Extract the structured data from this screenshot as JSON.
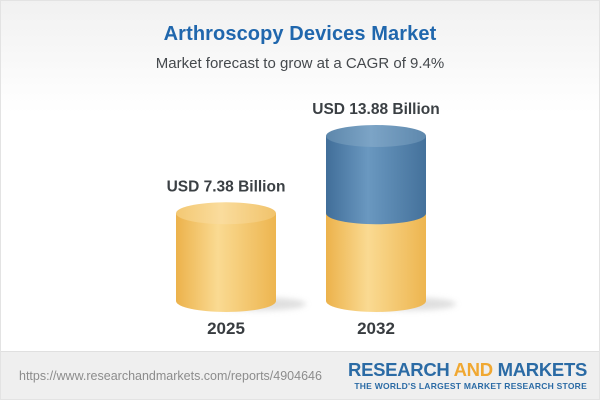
{
  "header": {
    "title": "Arthroscopy Devices Market",
    "subtitle": "Market forecast to grow at a CAGR of 9.4%"
  },
  "chart_data": {
    "type": "bar",
    "subtype": "3d-cylinder-stacked",
    "title": "Arthroscopy Devices Market",
    "subtitle": "Market forecast to grow at a CAGR of 9.4%",
    "categories": [
      "2025",
      "2032"
    ],
    "values": [
      7.38,
      13.88
    ],
    "value_labels": [
      "USD 7.38 Billion",
      "USD 13.88 Billion"
    ],
    "unit": "USD Billion",
    "cagr_pct": 9.4,
    "grid": false,
    "legend": false,
    "colors": {
      "base_segment": "#f0bd5c",
      "growth_segment": "#4e7ca6",
      "label_text": "#3b4044"
    }
  },
  "footer": {
    "url": "https://www.researchandmarkets.com/reports/4904646",
    "logo": {
      "part1": "RESEARCH",
      "part2": "AND",
      "part3": "MARKETS",
      "tagline": "THE WORLD'S LARGEST MARKET RESEARCH STORE",
      "blue": "#2b6ba5",
      "orange": "#f0a832"
    }
  }
}
